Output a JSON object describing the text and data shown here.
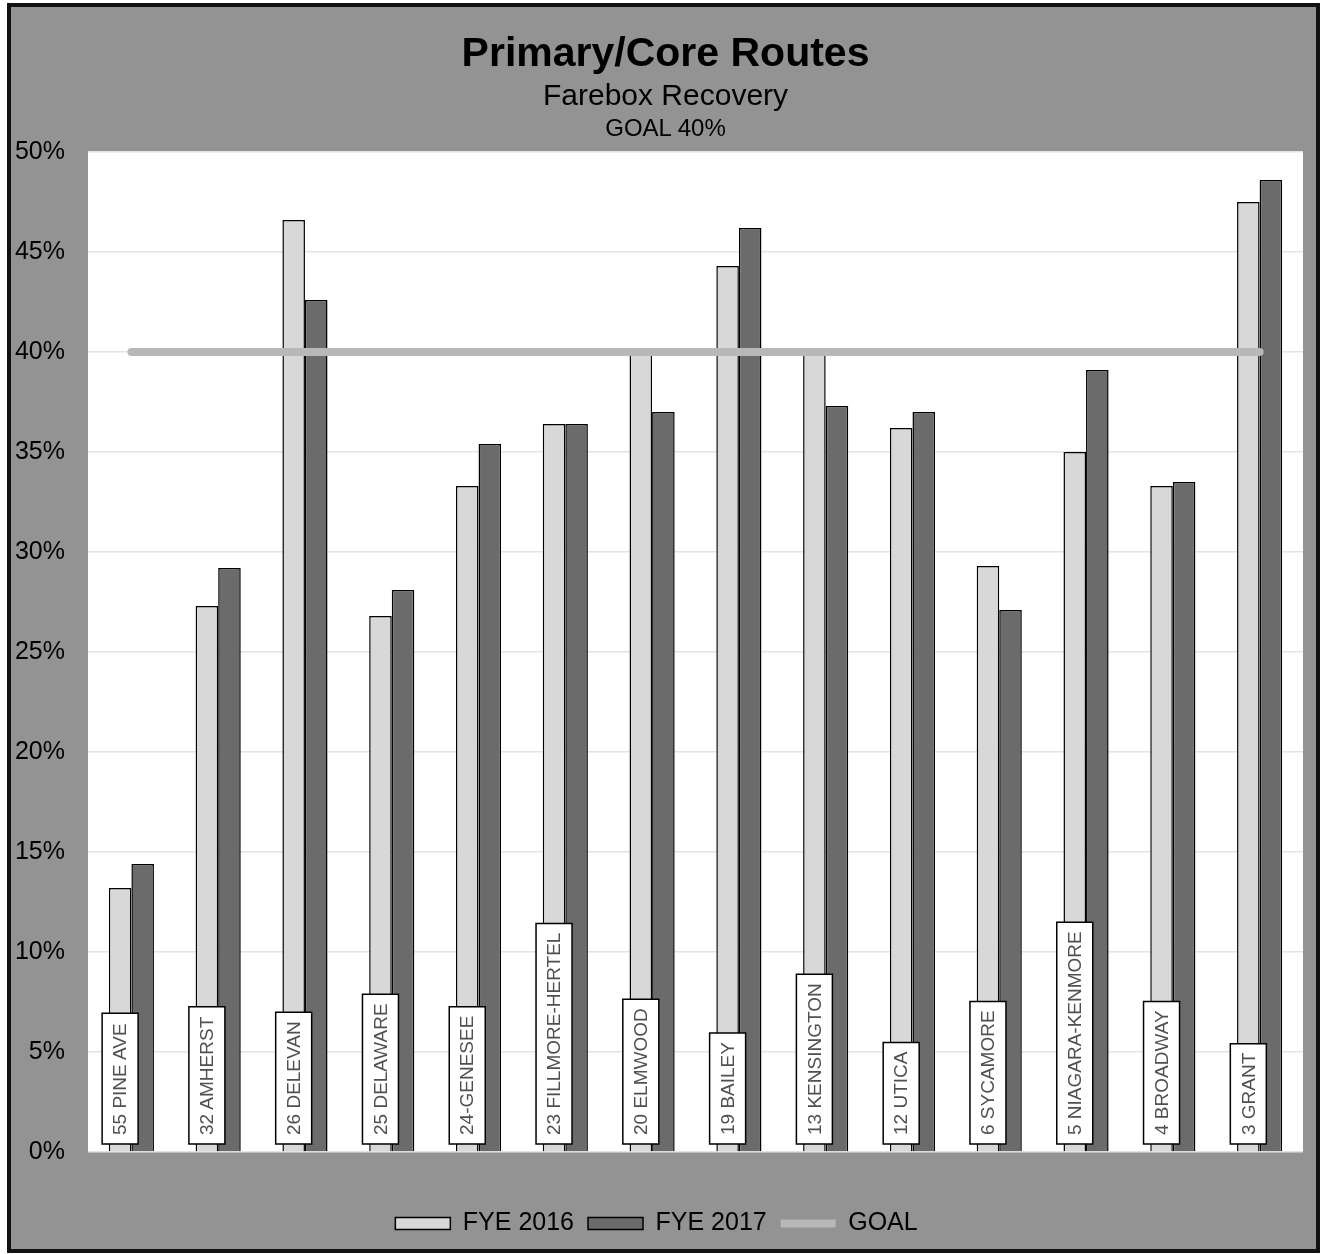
{
  "chart_data": {
    "type": "bar",
    "title": "Primary/Core Routes",
    "subtitle": "Farebox Recovery",
    "annotations": [
      "GOAL 40%"
    ],
    "categories": [
      "55 PINE AVE",
      "32 AMHERST",
      "26 DELEVAN",
      "25 DELAWARE",
      "24-GENESEE",
      "23 FILLMORE-HERTEL",
      "20 ELMWOOD",
      "19 BAILEY",
      "13 KENSINGTON",
      "12 UTICA",
      "6 SYCAMORE",
      "5 NIAGARA-KENMORE",
      "4 BROADWAY",
      "3 GRANT"
    ],
    "series": [
      {
        "name": "FYE 2016",
        "color": "#d8d8d8",
        "values": [
          13.2,
          27.3,
          46.6,
          26.8,
          33.3,
          36.4,
          40.0,
          44.3,
          40.0,
          36.2,
          29.3,
          35.0,
          33.3,
          47.5
        ]
      },
      {
        "name": "FYE 2017",
        "color": "#6b6b6b",
        "values": [
          14.4,
          29.2,
          42.6,
          28.1,
          35.4,
          36.4,
          37.0,
          46.2,
          37.3,
          37.0,
          27.1,
          39.1,
          33.5,
          48.6
        ]
      },
      {
        "name": "GOAL",
        "type": "line",
        "color": "#b8b8b8",
        "values": [
          40,
          40,
          40,
          40,
          40,
          40,
          40,
          40,
          40,
          40,
          40,
          40,
          40,
          40
        ]
      }
    ],
    "ylim": [
      0,
      50
    ],
    "yticks": [
      {
        "value": 0,
        "label": "0%"
      },
      {
        "value": 5,
        "label": "5%"
      },
      {
        "value": 10,
        "label": "10%"
      },
      {
        "value": 15,
        "label": "15%"
      },
      {
        "value": 20,
        "label": "20%"
      },
      {
        "value": 25,
        "label": "25%"
      },
      {
        "value": 30,
        "label": "30%"
      },
      {
        "value": 35,
        "label": "35%"
      },
      {
        "value": 40,
        "label": "40%"
      },
      {
        "value": 45,
        "label": "45%"
      },
      {
        "value": 50,
        "label": "50%"
      }
    ],
    "grid": "y",
    "legend": "bottom",
    "line_style": "solid"
  }
}
